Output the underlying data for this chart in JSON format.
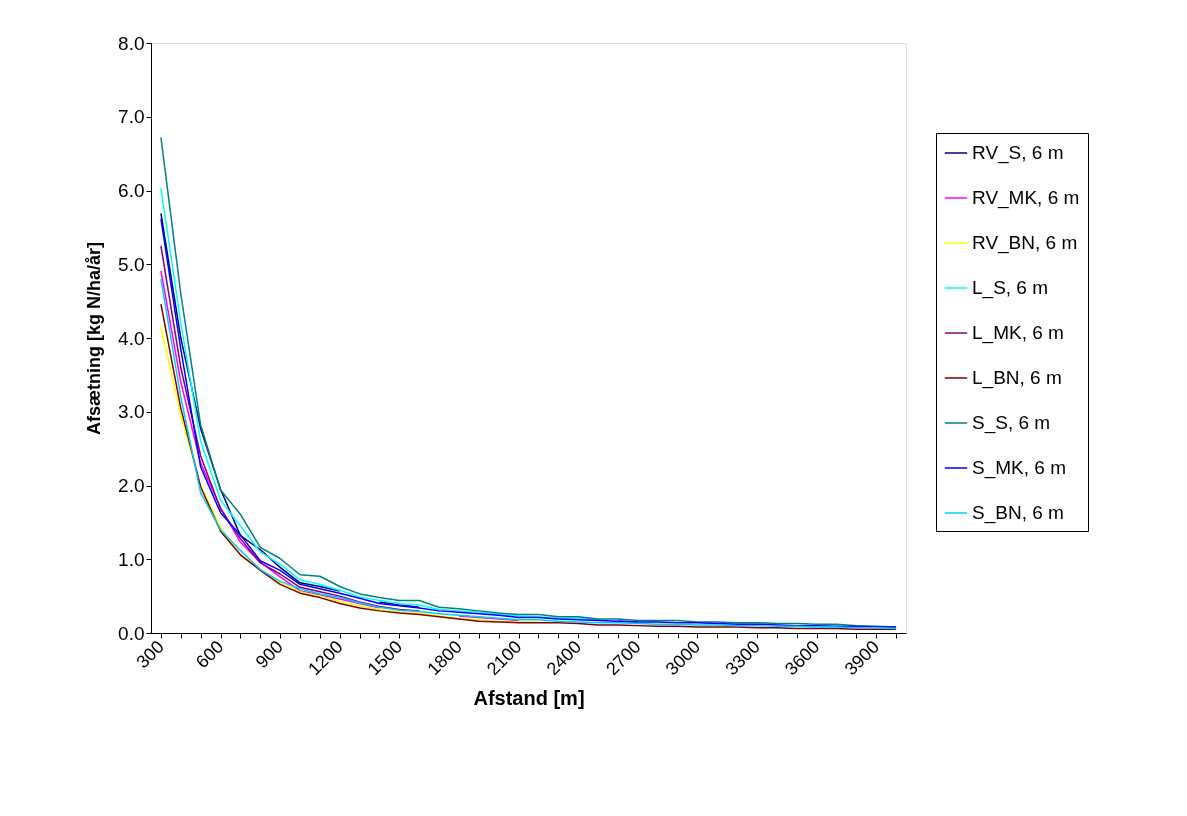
{
  "chart_data": {
    "type": "line",
    "xlabel": "Afstand [m]",
    "ylabel": "Afsætning [kg N/ha/år]",
    "categories": [
      "300",
      null,
      null,
      "600",
      null,
      null,
      "900",
      null,
      null,
      "1200",
      null,
      null,
      "1500",
      null,
      null,
      "1800",
      null,
      null,
      "2100",
      null,
      null,
      "2400",
      null,
      null,
      "2700",
      null,
      null,
      "3000",
      null,
      null,
      "3300",
      null,
      null,
      "3600",
      null,
      null,
      "3900",
      null
    ],
    "ylim": [
      0,
      8
    ],
    "yticks": [
      {
        "value": 0,
        "label": "0.0"
      },
      {
        "value": 1,
        "label": "1.0"
      },
      {
        "value": 2,
        "label": "2.0"
      },
      {
        "value": 3,
        "label": "3.0"
      },
      {
        "value": 4,
        "label": "4.0"
      },
      {
        "value": 5,
        "label": "5.0"
      },
      {
        "value": 6,
        "label": "6.0"
      },
      {
        "value": 7,
        "label": "7.0"
      },
      {
        "value": 8,
        "label": "8.0"
      }
    ],
    "grid": false,
    "legend": "right",
    "marker": "none",
    "line_style": "solid",
    "series": [
      {
        "name": "RV_S, 6 m",
        "color": "#000080",
        "values": [
          5.69,
          4.0,
          2.77,
          1.95,
          1.32,
          1.13,
          0.89,
          0.68,
          0.63,
          0.57,
          null,
          0.42,
          0.38,
          0.35,
          null,
          null,
          null,
          null,
          null,
          null,
          null,
          null,
          null,
          0.16,
          0.15,
          null,
          null,
          null,
          null,
          null,
          null,
          null,
          null,
          null,
          null,
          null,
          null,
          null
        ]
      },
      {
        "name": "RV_MK, 6 m",
        "color": "#ff00ff",
        "values": [
          4.91,
          3.4,
          2.3,
          1.7,
          1.23,
          0.96,
          0.76,
          0.57,
          0.52,
          0.46,
          0.4,
          0.34,
          null,
          null,
          null,
          0.23,
          0.21,
          0.19,
          0.17,
          null,
          null,
          null,
          null,
          null,
          null,
          null,
          null,
          null,
          null,
          null,
          null,
          null,
          null,
          null,
          null,
          null,
          null,
          null
        ]
      },
      {
        "name": "RV_BN, 6 m",
        "color": "#ffff00",
        "values": [
          4.15,
          2.95,
          2.0,
          1.43,
          1.06,
          0.87,
          0.68,
          0.56,
          0.5,
          0.43,
          0.37,
          0.32,
          0.28,
          0.27,
          0.23,
          0.2,
          0.18,
          0.16,
          0.15,
          0.15,
          null,
          null,
          null,
          null,
          null,
          null,
          null,
          null,
          null,
          null,
          null,
          null,
          null,
          null,
          null,
          null,
          null,
          null
        ]
      },
      {
        "name": "L_S, 6 m",
        "color": "#00ffff",
        "values": [
          6.03,
          4.2,
          2.6,
          1.8,
          1.45,
          1.1,
          0.93,
          0.72,
          0.66,
          0.58,
          0.49,
          0.44,
          0.4,
          0.38,
          0.32,
          0.3,
          0.28,
          0.25,
          0.23,
          0.22,
          0.2,
          0.2,
          0.18,
          null,
          null,
          null,
          null,
          null,
          null,
          null,
          null,
          null,
          null,
          null,
          null,
          null,
          null,
          null
        ]
      },
      {
        "name": "L_MK, 6 m",
        "color": "#800080",
        "values": [
          5.25,
          3.6,
          2.4,
          1.68,
          1.28,
          0.95,
          0.8,
          0.62,
          0.56,
          0.5,
          0.42,
          0.36,
          0.32,
          0.3,
          null,
          null,
          null,
          null,
          null,
          null,
          null,
          null,
          null,
          null,
          null,
          null,
          null,
          null,
          null,
          null,
          null,
          null,
          null,
          null,
          null,
          null,
          null,
          null
        ]
      },
      {
        "name": "L_BN, 6 m",
        "color": "#800000",
        "values": [
          4.46,
          3.05,
          1.98,
          1.38,
          1.06,
          0.85,
          0.66,
          0.54,
          0.48,
          0.4,
          0.34,
          0.3,
          0.27,
          0.25,
          0.22,
          0.19,
          0.16,
          0.15,
          0.14,
          0.14,
          0.14,
          0.13,
          0.11,
          0.11,
          0.1,
          0.09,
          0.09,
          0.08,
          0.08,
          0.08,
          0.07,
          0.07,
          0.06,
          0.06,
          0.06,
          0.05,
          0.05,
          0.05
        ]
      },
      {
        "name": "S_S, 6 m",
        "color": "#008080",
        "values": [
          6.72,
          4.6,
          2.82,
          1.94,
          1.61,
          1.16,
          1.01,
          0.79,
          0.77,
          0.63,
          0.53,
          0.48,
          0.44,
          0.44,
          0.35,
          0.33,
          0.3,
          0.27,
          0.25,
          0.25,
          0.22,
          0.22,
          0.19,
          0.19,
          0.17,
          0.17,
          0.17,
          0.15,
          0.15,
          0.14,
          0.14,
          0.13,
          0.13,
          0.12,
          0.12,
          0.1,
          0.09,
          0.08
        ]
      },
      {
        "name": "S_MK, 6 m",
        "color": "#0000ff",
        "values": [
          5.62,
          3.85,
          2.25,
          1.63,
          1.33,
          0.98,
          0.85,
          0.66,
          0.6,
          0.54,
          0.47,
          0.4,
          0.37,
          0.34,
          0.3,
          0.28,
          0.26,
          0.24,
          0.21,
          0.21,
          0.19,
          0.18,
          0.17,
          0.16,
          0.15,
          0.15,
          0.14,
          0.14,
          0.13,
          0.12,
          0.12,
          0.11,
          0.1,
          0.1,
          0.09,
          0.09,
          0.08,
          0.08
        ]
      },
      {
        "name": "S_BN, 6 m",
        "color": "#00ccff",
        "values": [
          4.8,
          3.2,
          1.9,
          1.4,
          1.12,
          0.86,
          0.7,
          0.6,
          0.53,
          0.48,
          0.41,
          0.35,
          0.31,
          0.29,
          0.26,
          0.24,
          0.22,
          0.2,
          0.18,
          0.18,
          0.16,
          0.15,
          0.14,
          0.14,
          0.13,
          0.12,
          0.12,
          0.11,
          0.11,
          0.1,
          0.1,
          0.09,
          0.09,
          0.08,
          0.08,
          0.07,
          0.07,
          0.06
        ]
      }
    ]
  }
}
